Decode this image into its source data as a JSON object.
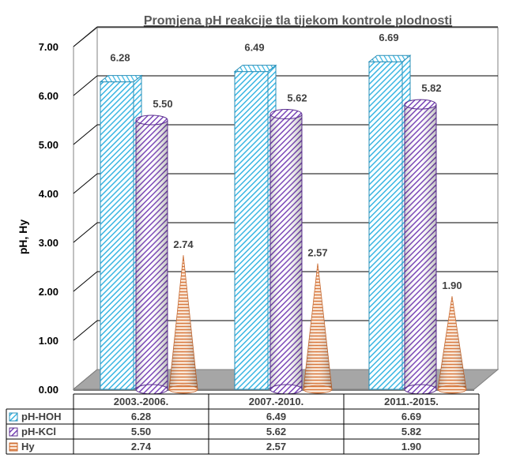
{
  "chart_data": {
    "type": "bar",
    "title": "Promjena pH reakcije tla tijekom kontrole plodnosti",
    "ylabel": "pH, Hy",
    "xlabel": "",
    "ylim": [
      0,
      7
    ],
    "y_ticks": [
      "0.00",
      "1.00",
      "2.00",
      "3.00",
      "4.00",
      "5.00",
      "6.00",
      "7.00"
    ],
    "categories": [
      "2003.-2006.",
      "2007.-2010.",
      "2011.-2015."
    ],
    "grid": true,
    "legend_placement": "data-table-below",
    "series": [
      {
        "name": "pH-HOH",
        "shape": "box",
        "color": "#39b6e3",
        "values": [
          6.28,
          6.49,
          6.69
        ],
        "labels": [
          "6.28",
          "6.49",
          "6.69"
        ]
      },
      {
        "name": "pH-KCl",
        "shape": "cylinder",
        "color": "#8a5ac0",
        "values": [
          5.5,
          5.62,
          5.82
        ],
        "labels": [
          "5.50",
          "5.62",
          "5.82"
        ]
      },
      {
        "name": "Hy",
        "shape": "cone",
        "color": "#d9763a",
        "values": [
          2.74,
          2.57,
          1.9
        ],
        "labels": [
          "2.74",
          "2.57",
          "1.90"
        ]
      }
    ]
  }
}
